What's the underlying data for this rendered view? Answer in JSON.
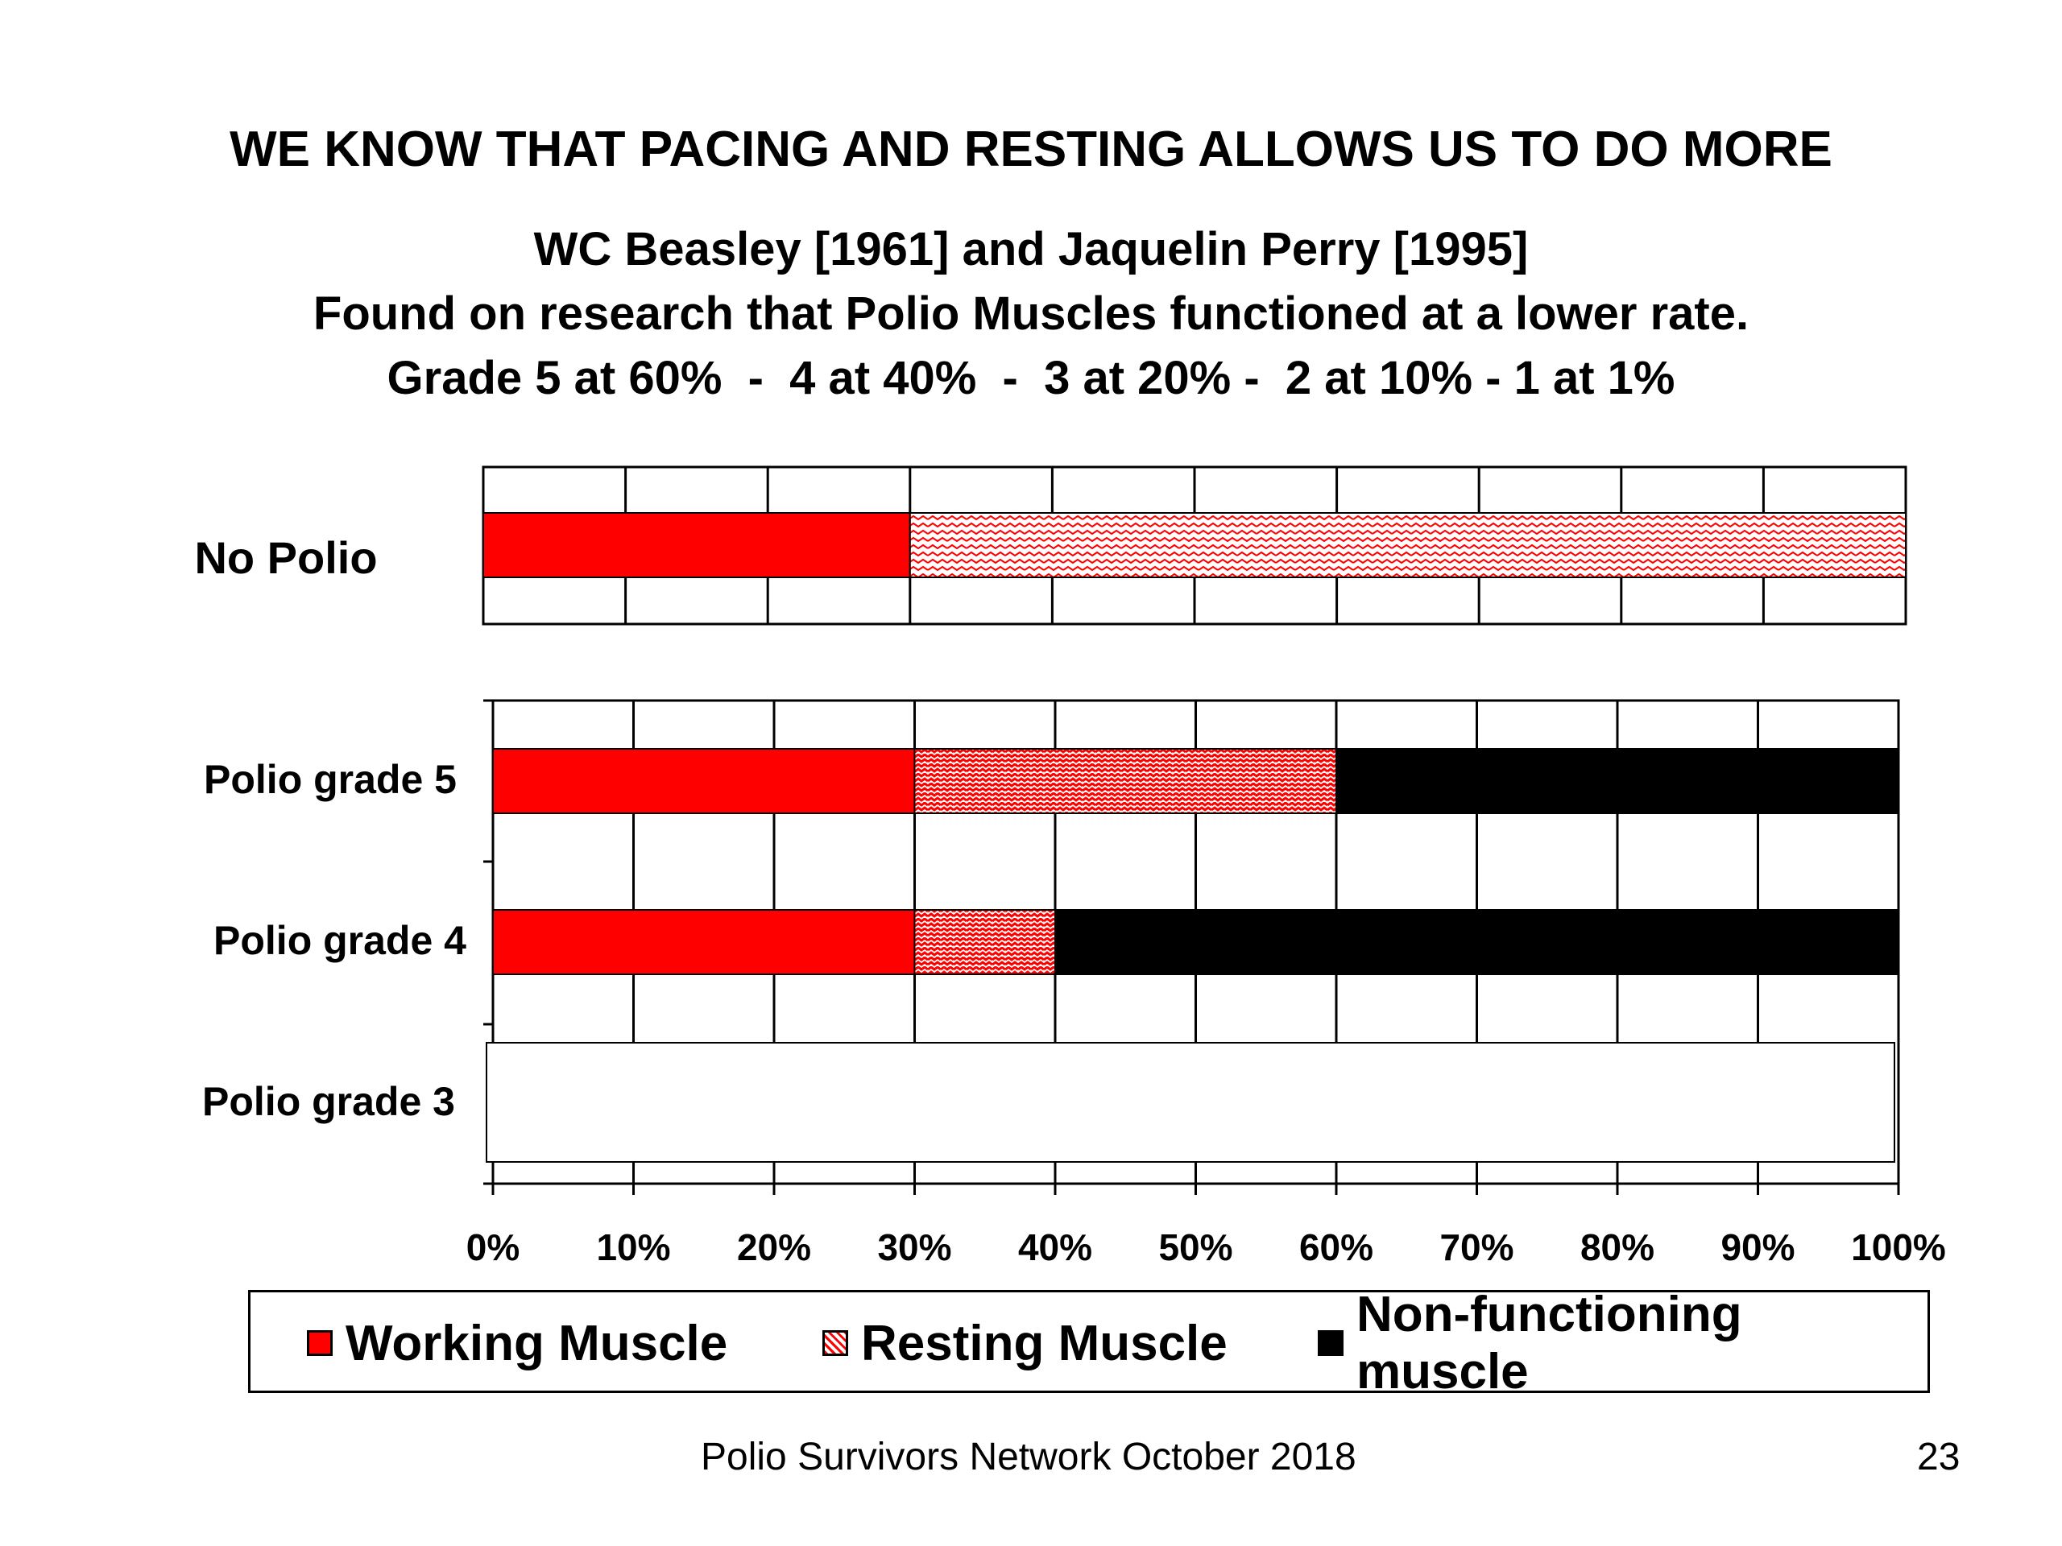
{
  "slide": {
    "title": "WE KNOW THAT PACING AND RESTING ALLOWS US TO DO MORE",
    "subtitle_lines": [
      "WC Beasley [1961] and Jaquelin Perry [1995]",
      "Found on research that Polio Muscles functioned at a lower rate.",
      "Grade 5 at 60%  -  4 at 40%  -  3 at 20% -  2 at 10% - 1 at 1%"
    ],
    "footer": "Polio Survivors Network October 2018",
    "page_number": "23"
  },
  "chart_data": [
    {
      "type": "bar",
      "orientation": "horizontal",
      "stacked": true,
      "categories": [
        "No Polio"
      ],
      "series": [
        {
          "name": "Working Muscle",
          "values": [
            30
          ]
        },
        {
          "name": "Resting Muscle",
          "values": [
            70
          ]
        }
      ],
      "xlim": [
        0,
        100
      ],
      "grid": true
    },
    {
      "type": "bar",
      "orientation": "horizontal",
      "stacked": true,
      "categories": [
        "Polio grade 5",
        "Polio grade 4",
        "Polio grade 3"
      ],
      "series": [
        {
          "name": "Working Muscle",
          "values": [
            30,
            30,
            null
          ]
        },
        {
          "name": "Resting Muscle",
          "values": [
            30,
            10,
            null
          ]
        },
        {
          "name": "Non-functioning muscle",
          "values": [
            40,
            60,
            null
          ]
        }
      ],
      "xlim": [
        0,
        100
      ],
      "xticks": [
        "0%",
        "10%",
        "20%",
        "30%",
        "40%",
        "50%",
        "60%",
        "70%",
        "80%",
        "90%",
        "100%"
      ],
      "grid": true,
      "legend_position": "bottom"
    }
  ],
  "legend": {
    "items": [
      {
        "label": "Working Muscle",
        "color": "#ff0000",
        "pattern": "solid"
      },
      {
        "label": "Resting Muscle",
        "color": "#ff0000",
        "pattern": "zigzag"
      },
      {
        "label": "Non-functioning muscle",
        "color": "#000000",
        "pattern": "solid"
      }
    ]
  },
  "colors": {
    "working": "#ff0000",
    "resting": "#ff0000",
    "nonfunctioning": "#000000"
  }
}
